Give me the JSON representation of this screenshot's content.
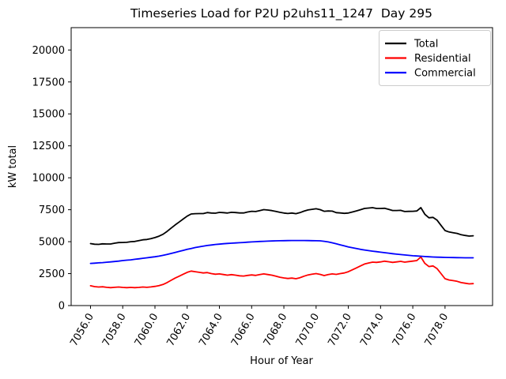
{
  "chart_data": {
    "type": "line",
    "title": "Timeseries Load for P2U p2uhs11_1247  Day 295",
    "xlabel": "Hour of Year",
    "ylabel": "kW total",
    "grid": false,
    "legend_position": "upper right",
    "xlim": [
      7054.8,
      7080.95
    ],
    "ylim": [
      0,
      21750
    ],
    "xticks": [
      7056,
      7058,
      7060,
      7062,
      7064,
      7066,
      7068,
      7070,
      7072,
      7074,
      7076,
      7078
    ],
    "xtick_labels": [
      "7056.0",
      "7058.0",
      "7060.0",
      "7062.0",
      "7064.0",
      "7066.0",
      "7068.0",
      "7070.0",
      "7072.0",
      "7074.0",
      "7076.0",
      "7078.0"
    ],
    "yticks": [
      0,
      2500,
      5000,
      7500,
      10000,
      12500,
      15000,
      17500,
      20000
    ],
    "ytick_labels": [
      "0",
      "2500",
      "5000",
      "7500",
      "10000",
      "12500",
      "15000",
      "17500",
      "20000"
    ],
    "x": [
      7056.0,
      7056.25,
      7056.5,
      7056.75,
      7057.0,
      7057.25,
      7057.5,
      7057.75,
      7058.0,
      7058.25,
      7058.5,
      7058.75,
      7059.0,
      7059.25,
      7059.5,
      7059.75,
      7060.0,
      7060.25,
      7060.5,
      7060.75,
      7061.0,
      7061.25,
      7061.5,
      7061.75,
      7062.0,
      7062.25,
      7062.5,
      7062.75,
      7063.0,
      7063.25,
      7063.5,
      7063.75,
      7064.0,
      7064.25,
      7064.5,
      7064.75,
      7065.0,
      7065.25,
      7065.5,
      7065.75,
      7066.0,
      7066.25,
      7066.5,
      7066.75,
      7067.0,
      7067.25,
      7067.5,
      7067.75,
      7068.0,
      7068.25,
      7068.5,
      7068.75,
      7069.0,
      7069.25,
      7069.5,
      7069.75,
      7070.0,
      7070.25,
      7070.5,
      7070.75,
      7071.0,
      7071.25,
      7071.5,
      7071.75,
      7072.0,
      7072.25,
      7072.5,
      7072.75,
      7073.0,
      7073.25,
      7073.5,
      7073.75,
      7074.0,
      7074.25,
      7074.5,
      7074.75,
      7075.0,
      7075.25,
      7075.5,
      7075.75,
      7076.0,
      7076.25,
      7076.5,
      7076.75,
      7077.0,
      7077.25,
      7077.5,
      7077.75,
      7078.0,
      7078.25,
      7078.5,
      7078.75,
      7079.0,
      7079.25,
      7079.5,
      7079.75
    ],
    "series": [
      {
        "name": "Total",
        "color": "#000000",
        "values": [
          4850,
          4800,
          4790,
          4830,
          4820,
          4820,
          4880,
          4930,
          4940,
          4950,
          5000,
          5020,
          5080,
          5150,
          5170,
          5240,
          5320,
          5430,
          5580,
          5800,
          6060,
          6310,
          6540,
          6770,
          7000,
          7170,
          7190,
          7200,
          7200,
          7280,
          7240,
          7230,
          7290,
          7270,
          7240,
          7300,
          7280,
          7250,
          7250,
          7320,
          7380,
          7360,
          7435,
          7510,
          7475,
          7435,
          7365,
          7295,
          7240,
          7205,
          7240,
          7190,
          7270,
          7390,
          7485,
          7530,
          7575,
          7505,
          7380,
          7400,
          7390,
          7270,
          7250,
          7220,
          7240,
          7320,
          7410,
          7500,
          7600,
          7630,
          7660,
          7600,
          7600,
          7610,
          7530,
          7440,
          7440,
          7450,
          7360,
          7370,
          7380,
          7400,
          7660,
          7140,
          6870,
          6900,
          6690,
          6280,
          5870,
          5760,
          5705,
          5650,
          5545,
          5490,
          5440,
          5460
        ]
      },
      {
        "name": "Residential",
        "color": "#ff0000",
        "values": [
          1550,
          1480,
          1450,
          1470,
          1430,
          1400,
          1430,
          1450,
          1420,
          1400,
          1420,
          1400,
          1420,
          1450,
          1430,
          1460,
          1500,
          1560,
          1650,
          1800,
          1980,
          2150,
          2300,
          2450,
          2600,
          2700,
          2650,
          2600,
          2550,
          2580,
          2500,
          2450,
          2480,
          2430,
          2380,
          2420,
          2380,
          2330,
          2310,
          2360,
          2400,
          2360,
          2420,
          2480,
          2430,
          2380,
          2300,
          2220,
          2160,
          2120,
          2150,
          2100,
          2180,
          2300,
          2400,
          2450,
          2500,
          2440,
          2350,
          2420,
          2480,
          2440,
          2500,
          2550,
          2650,
          2800,
          2950,
          3100,
          3250,
          3330,
          3400,
          3380,
          3420,
          3470,
          3430,
          3380,
          3420,
          3460,
          3400,
          3440,
          3480,
          3520,
          3800,
          3300,
          3050,
          3100,
          2900,
          2500,
          2100,
          2000,
          1950,
          1900,
          1800,
          1750,
          1700,
          1720
        ]
      },
      {
        "name": "Commercial",
        "color": "#0000ff",
        "values": [
          3300,
          3320,
          3340,
          3360,
          3390,
          3420,
          3450,
          3480,
          3520,
          3550,
          3580,
          3620,
          3660,
          3700,
          3740,
          3780,
          3820,
          3870,
          3930,
          4000,
          4080,
          4160,
          4240,
          4320,
          4400,
          4470,
          4540,
          4600,
          4650,
          4700,
          4740,
          4780,
          4810,
          4840,
          4860,
          4880,
          4900,
          4920,
          4940,
          4960,
          4980,
          5000,
          5015,
          5030,
          5045,
          5055,
          5065,
          5075,
          5080,
          5085,
          5090,
          5090,
          5090,
          5090,
          5085,
          5080,
          5075,
          5065,
          5030,
          4980,
          4910,
          4830,
          4750,
          4670,
          4590,
          4520,
          4460,
          4400,
          4350,
          4300,
          4260,
          4220,
          4180,
          4140,
          4100,
          4060,
          4020,
          3990,
          3960,
          3930,
          3900,
          3880,
          3860,
          3840,
          3820,
          3800,
          3790,
          3780,
          3770,
          3760,
          3755,
          3750,
          3745,
          3740,
          3740,
          3740
        ]
      }
    ]
  }
}
